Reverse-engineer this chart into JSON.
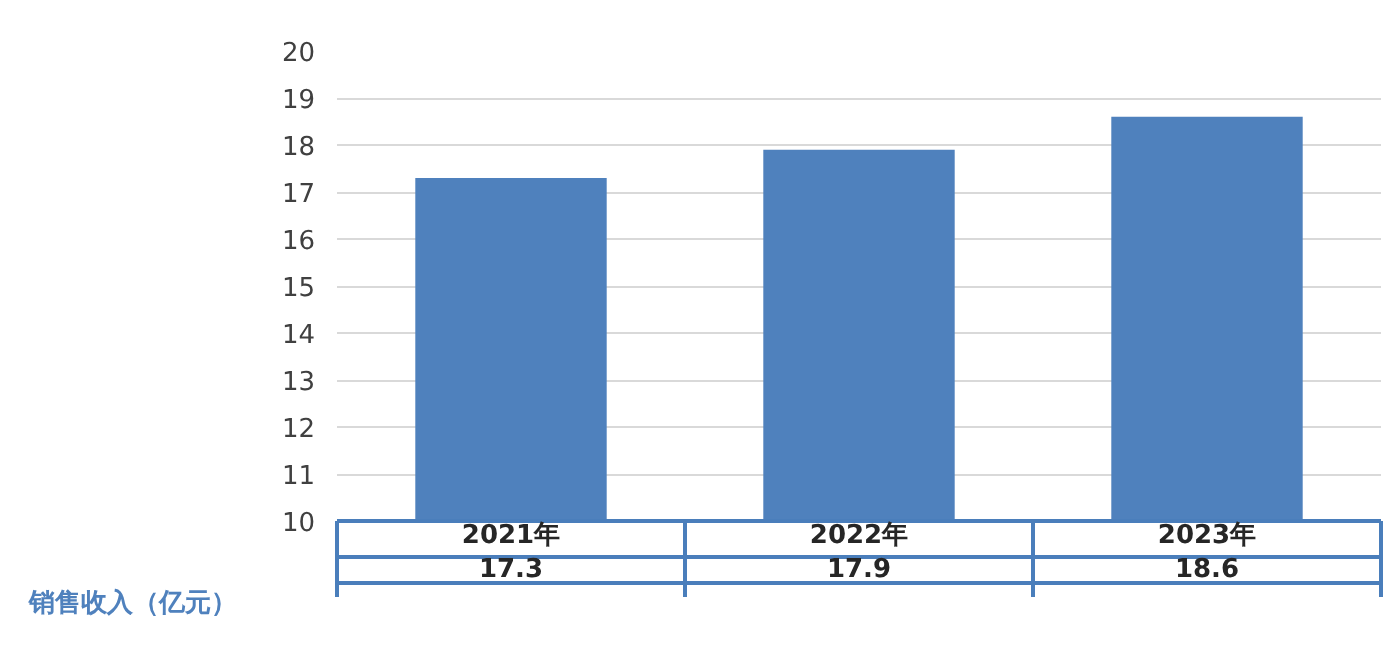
{
  "chart_data": {
    "type": "bar",
    "categories": [
      "2021年",
      "2022年",
      "2023年"
    ],
    "series": [
      {
        "name": "销售收入（亿元）",
        "color": "#4f81bd",
        "values": [
          17.3,
          17.9,
          18.6
        ]
      }
    ],
    "ylim": [
      10,
      20
    ],
    "yticks": [
      10,
      11,
      12,
      13,
      14,
      15,
      16,
      17,
      18,
      19,
      20
    ],
    "grid": "y",
    "data_labels": true
  }
}
